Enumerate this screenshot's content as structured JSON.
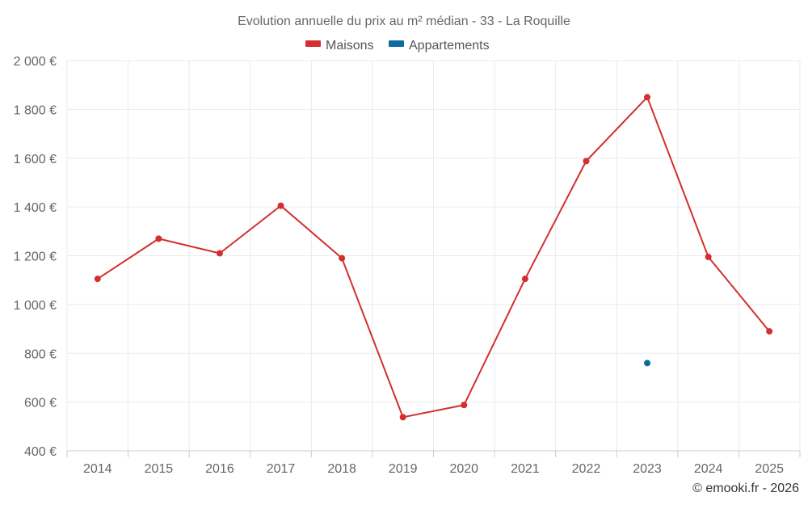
{
  "chart_data": {
    "type": "line",
    "title": "Evolution annuelle du prix au m² médian - 33 - La Roquille",
    "categories": [
      "2014",
      "2015",
      "2016",
      "2017",
      "2018",
      "2019",
      "2020",
      "2021",
      "2022",
      "2023",
      "2024",
      "2025"
    ],
    "series": [
      {
        "name": "Maisons",
        "color": "#d32f2f",
        "values": [
          1105,
          1270,
          1210,
          1405,
          1190,
          538,
          588,
          1105,
          1588,
          1850,
          1195,
          890
        ]
      },
      {
        "name": "Appartements",
        "color": "#0d6aa3",
        "values": [
          null,
          null,
          null,
          null,
          null,
          null,
          null,
          null,
          null,
          760,
          null,
          null
        ]
      }
    ],
    "y_ticks": [
      400,
      600,
      800,
      1000,
      1200,
      1400,
      1600,
      1800,
      2000
    ],
    "y_tick_labels": [
      "400 €",
      "600 €",
      "800 €",
      "1 000 €",
      "1 200 €",
      "1 400 €",
      "1 600 €",
      "1 800 €",
      "2 000 €"
    ],
    "ylim": [
      400,
      2000
    ],
    "xlabel": "",
    "ylabel": "",
    "grid": true,
    "legend_position": "top-center"
  },
  "credit": "© emooki.fr - 2026"
}
